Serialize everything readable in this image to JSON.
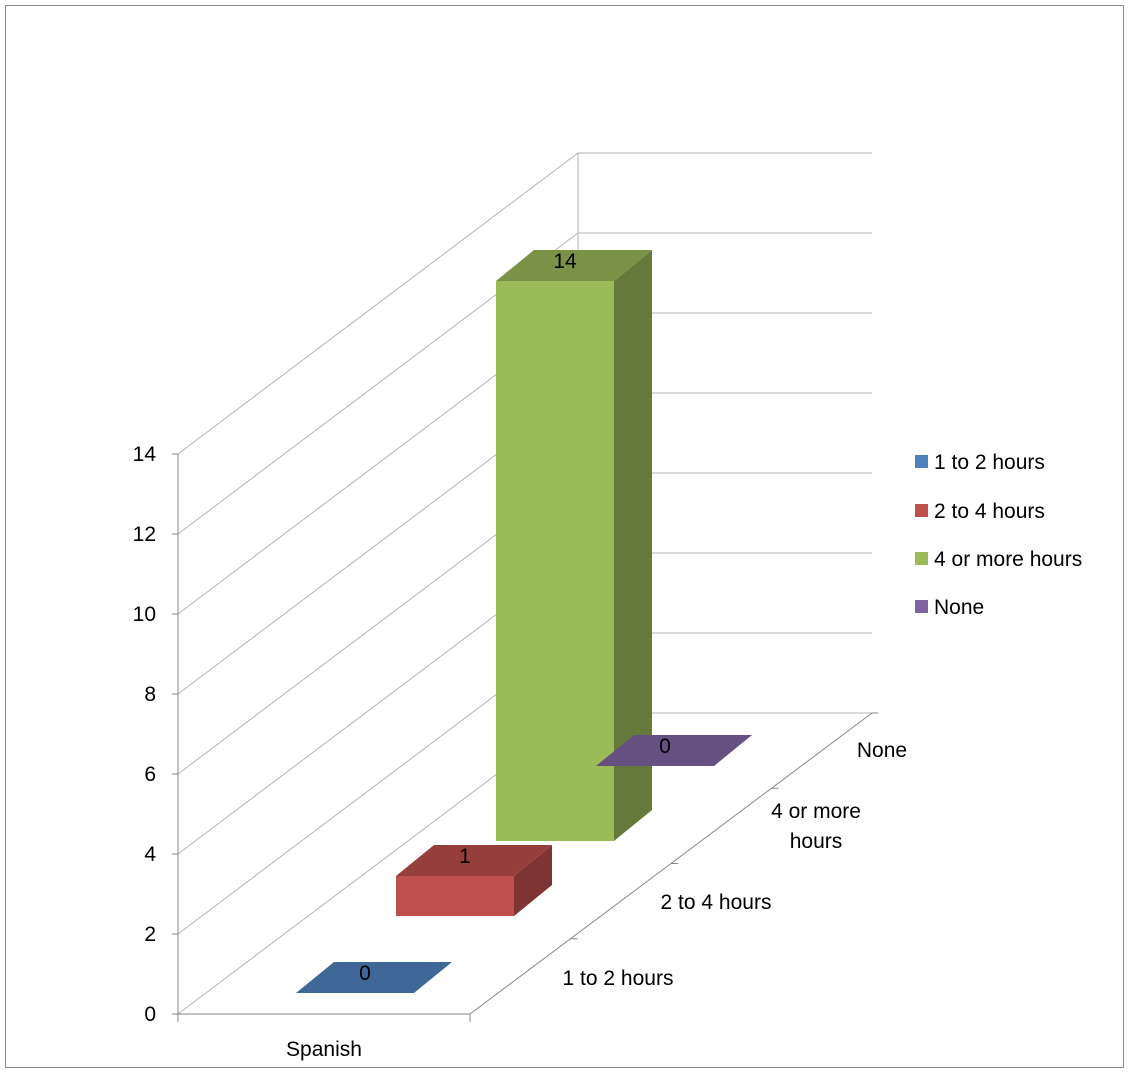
{
  "chart_data": {
    "type": "bar",
    "projection": "3d-column",
    "categories": [
      "Spanish"
    ],
    "depth_labels": [
      "1 to 2 hours",
      "2 to 4 hours",
      "4 or more hours",
      "None"
    ],
    "series": [
      {
        "name": "1 to 2 hours",
        "values": [
          0
        ],
        "color": "#4F81BD"
      },
      {
        "name": "2 to 4 hours",
        "values": [
          1
        ],
        "color": "#C0504D"
      },
      {
        "name": "4 or more hours",
        "values": [
          14
        ],
        "color": "#9BBB59"
      },
      {
        "name": "None",
        "values": [
          0
        ],
        "color": "#8064A2"
      }
    ],
    "data_labels": [
      "0",
      "1",
      "14",
      "0"
    ],
    "y_ticks": [
      "0",
      "2",
      "4",
      "6",
      "8",
      "10",
      "12",
      "14"
    ],
    "ylim": [
      0,
      14
    ],
    "grid": true,
    "legend_position": "right"
  }
}
